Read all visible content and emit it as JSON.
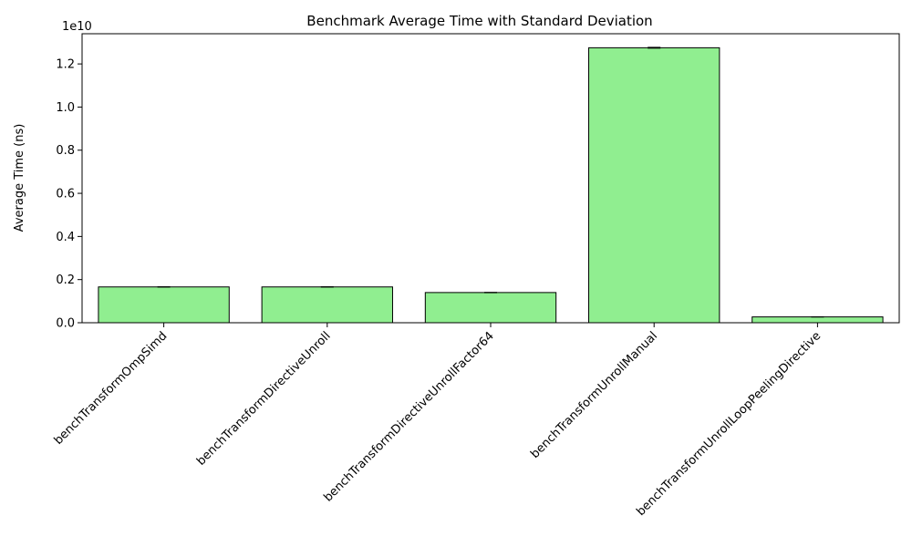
{
  "chart_data": {
    "type": "bar",
    "title": "Benchmark Average Time with Standard Deviation",
    "xlabel": "",
    "ylabel": "Average Time (ns)",
    "y_multiplier_label": "1e10",
    "categories": [
      "benchTransformOmpSimd",
      "benchTransformDirectiveUnroll",
      "benchTransformDirectiveUnrollFactor64",
      "benchTransformUnrollManual",
      "benchTransformUnrollLoopPeelingDirective"
    ],
    "values": [
      1660000000.0,
      1660000000.0,
      1400000000.0,
      12750000000.0,
      270000000.0
    ],
    "errors": [
      8000000.0,
      8000000.0,
      8000000.0,
      20000000.0,
      5000000.0
    ],
    "ylim": [
      0,
      13400000000.0
    ],
    "yticks": [
      0,
      2000000000.0,
      4000000000.0,
      6000000000.0,
      8000000000.0,
      10000000000.0,
      12000000000.0
    ],
    "ytick_labels": [
      "0.0",
      "0.2",
      "0.4",
      "0.6",
      "0.8",
      "1.0",
      "1.2"
    ],
    "bar_color": "#90ee90",
    "edge_color": "#000000",
    "grid": false
  }
}
